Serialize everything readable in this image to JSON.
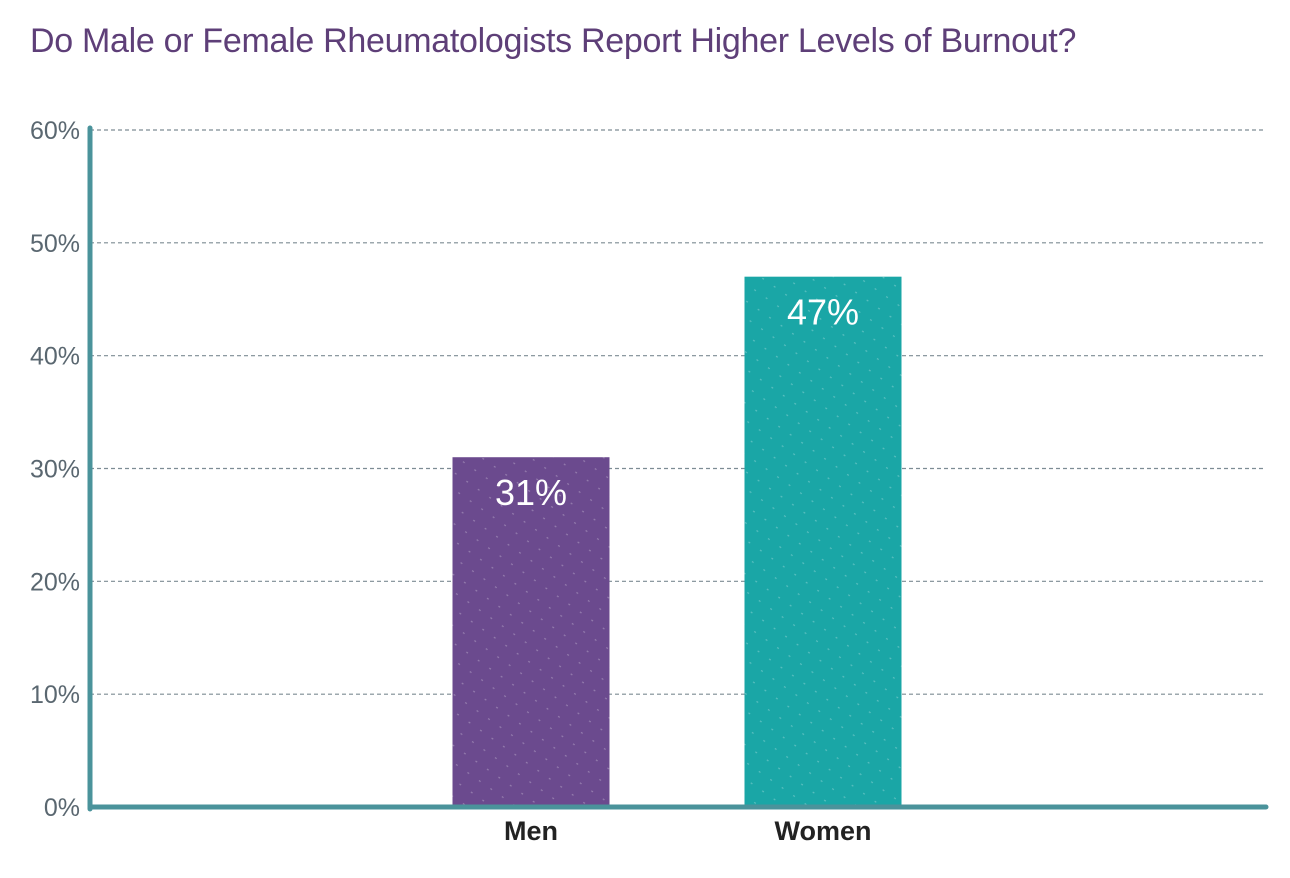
{
  "chart_data": {
    "type": "bar",
    "title": "Do Male or Female Rheumatologists Report Higher Levels of Burnout?",
    "categories": [
      "Men",
      "Women"
    ],
    "values": [
      31,
      47
    ],
    "data_labels": [
      "31%",
      "47%"
    ],
    "bar_colors": [
      "#6b4a8e",
      "#1aa6a6"
    ],
    "ylim": [
      0,
      60
    ],
    "yticks": [
      0,
      10,
      20,
      30,
      40,
      50,
      60
    ],
    "ytick_labels": [
      "0%",
      "10%",
      "20%",
      "30%",
      "40%",
      "50%",
      "60%"
    ],
    "xlabel": "",
    "ylabel": "",
    "grid": true,
    "grid_style": "dashed",
    "axis_color": "#4a939b",
    "title_color": "#5e3f78"
  }
}
